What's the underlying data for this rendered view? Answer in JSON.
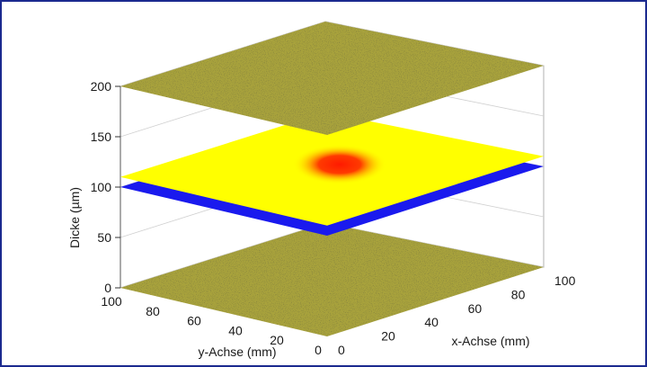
{
  "chart_data": {
    "type": "surface3d",
    "title": "",
    "zlabel": "Dicke (µm)",
    "xlabel": "x-Achse (mm)",
    "ylabel": "y-Achse (mm)",
    "zlim": [
      0,
      200
    ],
    "xlim": [
      0,
      100
    ],
    "ylim": [
      0,
      100
    ],
    "z_ticks": [
      "0",
      "50",
      "100",
      "150",
      "200"
    ],
    "x_ticks": [
      "0",
      "20",
      "40",
      "60",
      "80",
      "100"
    ],
    "y_ticks": [
      "0",
      "20",
      "40",
      "60",
      "80",
      "100"
    ],
    "grid": true,
    "surfaces": [
      {
        "z": 0,
        "color": "#a8a23c",
        "texture": "noise"
      },
      {
        "z": 100,
        "color": "#1a1aee",
        "texture": "noise"
      },
      {
        "z": 110,
        "color": "#ffff00",
        "texture": "noise",
        "hotspot": {
          "x": 55,
          "y": 50,
          "color": "#ff1a00"
        }
      },
      {
        "z": 200,
        "color": "#a8a23c",
        "texture": "noise"
      }
    ]
  }
}
